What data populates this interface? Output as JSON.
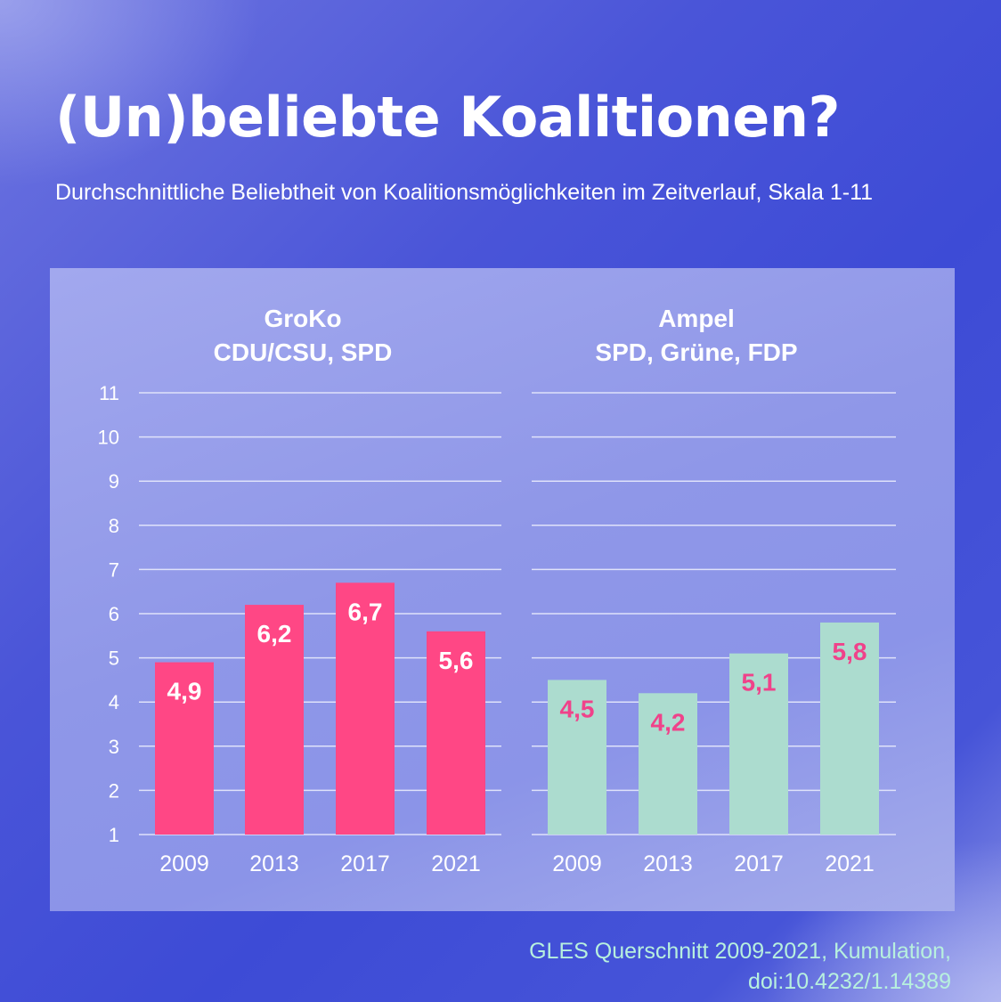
{
  "title": "(Un)beliebte Koalitionen?",
  "subtitle": "Durchschnittliche Beliebtheit von Koalitionsmöglichkeiten im Zeitverlauf, Skala 1-11",
  "source": {
    "line1": "GLES Querschnitt 2009-2021, Kumulation,",
    "line2": "doi:10.4232/1.14389"
  },
  "colors": {
    "groko_bar": "#ff4785",
    "ampel_bar": "#acdccf",
    "groko_label": "#ffffff",
    "ampel_label": "#f0428a",
    "axis_text": "#ffffff",
    "grid": "#dfe2fa"
  },
  "chart_data": [
    {
      "type": "bar",
      "title_line1": "GroKo",
      "title_line2": "CDU/CSU, SPD",
      "categories": [
        "2009",
        "2013",
        "2017",
        "2021"
      ],
      "values": [
        4.9,
        6.2,
        6.7,
        5.6
      ],
      "value_labels": [
        "4,9",
        "6,2",
        "6,7",
        "5,6"
      ],
      "ylim": [
        1,
        11
      ],
      "yticks": [
        1,
        2,
        3,
        4,
        5,
        6,
        7,
        8,
        9,
        10,
        11
      ],
      "grid": true
    },
    {
      "type": "bar",
      "title_line1": "Ampel",
      "title_line2": "SPD, Grüne, FDP",
      "categories": [
        "2009",
        "2013",
        "2017",
        "2021"
      ],
      "values": [
        4.5,
        4.2,
        5.1,
        5.8
      ],
      "value_labels": [
        "4,5",
        "4,2",
        "5,1",
        "5,8"
      ],
      "ylim": [
        1,
        11
      ],
      "yticks": [
        1,
        2,
        3,
        4,
        5,
        6,
        7,
        8,
        9,
        10,
        11
      ],
      "grid": true
    }
  ]
}
